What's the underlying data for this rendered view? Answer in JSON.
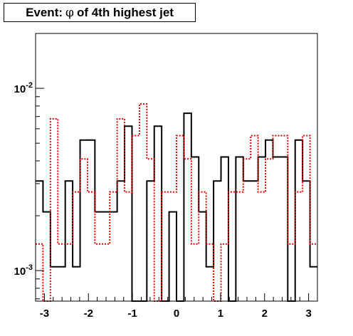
{
  "title": {
    "prefix": "Event:",
    "symbol": "φ",
    "suffix": "of 4th highest jet"
  },
  "chart_data": {
    "type": "histogram-step",
    "xlim": [
      -3.2,
      3.2
    ],
    "ylim": [
      0.00068,
      0.02
    ],
    "yscale": "log",
    "grid": false,
    "bins": 38,
    "x_ticks": [
      -3,
      -2,
      -1,
      0,
      1,
      2,
      3
    ],
    "x_tick_labels": [
      "-3",
      "-2",
      "-1",
      "0",
      "1",
      "2",
      "3"
    ],
    "y_tick_labels": [
      {
        "value": 0.01,
        "base": "10",
        "exp": "-2"
      },
      {
        "value": 0.001,
        "base": "10",
        "exp": "-3"
      }
    ],
    "series": [
      {
        "color": "#000000",
        "style": "solid",
        "values": [
          0.0031,
          0.0021,
          0.00105,
          0.00105,
          0.0031,
          0.00105,
          0.0052,
          0.0052,
          0.0021,
          0.0021,
          0.0021,
          0.0031,
          0.0062,
          0.00068,
          0.00068,
          0.0031,
          0.0062,
          0.00068,
          0.0021,
          0.00068,
          0.0073,
          0.0042,
          0.0021,
          0.00105,
          0.0031,
          0.0042,
          0.00068,
          0.0042,
          0.0031,
          0.0031,
          0.0042,
          0.0052,
          0.0042,
          0.0042,
          0.00068,
          0.0052,
          0.0031,
          0.00105
        ]
      },
      {
        "color": "#e00000",
        "style": "dotted",
        "values": [
          0.0014,
          0.00068,
          0.0068,
          0.0014,
          0.0014,
          0.0027,
          0.0041,
          0.0027,
          0.0014,
          0.0014,
          0.0027,
          0.0068,
          0.0027,
          0.0055,
          0.0082,
          0.0041,
          0.00068,
          0.0027,
          0.0027,
          0.0055,
          0.0041,
          0.0014,
          0.0027,
          0.0014,
          0.00068,
          0.0014,
          0.0027,
          0.0027,
          0.0041,
          0.0055,
          0.0027,
          0.0041,
          0.0055,
          0.0055,
          0.0014,
          0.0027,
          0.0055,
          0.0014
        ]
      }
    ]
  }
}
